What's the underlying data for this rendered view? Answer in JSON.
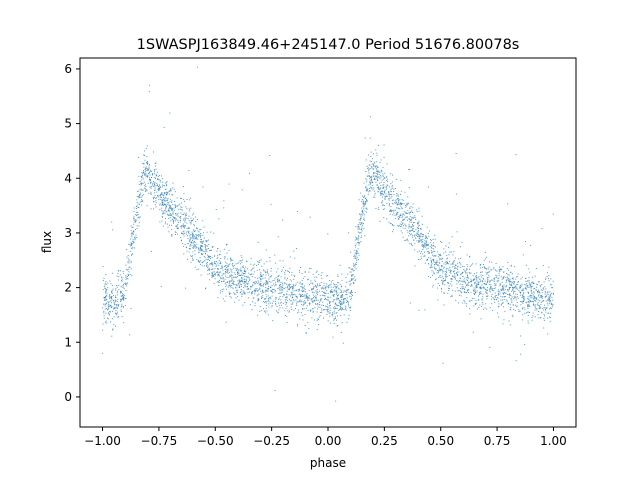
{
  "chart_data": {
    "type": "scatter",
    "title": "1SWASPJ163849.46+245147.0 Period 51676.80078s",
    "xlabel": "phase",
    "ylabel": "flux",
    "xlim": [
      -1.1,
      1.1
    ],
    "ylim": [
      -0.55,
      6.2
    ],
    "xticks": [
      -1.0,
      -0.75,
      -0.5,
      -0.25,
      0.0,
      0.25,
      0.5,
      0.75,
      1.0
    ],
    "xtick_labels": [
      "−1.00",
      "−0.75",
      "−0.50",
      "−0.25",
      "0.00",
      "0.25",
      "0.50",
      "0.75",
      "1.00"
    ],
    "yticks": [
      0,
      1,
      2,
      3,
      4,
      5,
      6
    ],
    "ytick_labels": [
      "0",
      "1",
      "2",
      "3",
      "4",
      "5",
      "6"
    ],
    "grid": false,
    "marker_color": "#1f77b4",
    "series": [
      {
        "profile_x": [
          -1.0,
          -0.95,
          -0.9,
          -0.85,
          -0.82,
          -0.8,
          -0.75,
          -0.7,
          -0.6,
          -0.5,
          -0.4,
          -0.3,
          -0.2,
          -0.1,
          0.0,
          0.05,
          0.08,
          0.1,
          0.15,
          0.18,
          0.2,
          0.25,
          0.3,
          0.4,
          0.5,
          0.6,
          0.7,
          0.8,
          0.9,
          1.0
        ],
        "profile_y": [
          1.8,
          1.7,
          2.0,
          3.3,
          4.0,
          4.1,
          3.75,
          3.45,
          2.95,
          2.35,
          2.15,
          2.05,
          1.95,
          1.85,
          1.8,
          1.75,
          1.8,
          2.0,
          3.3,
          4.0,
          4.1,
          3.75,
          3.45,
          2.95,
          2.35,
          2.15,
          2.05,
          1.95,
          1.85,
          1.8
        ]
      }
    ]
  }
}
